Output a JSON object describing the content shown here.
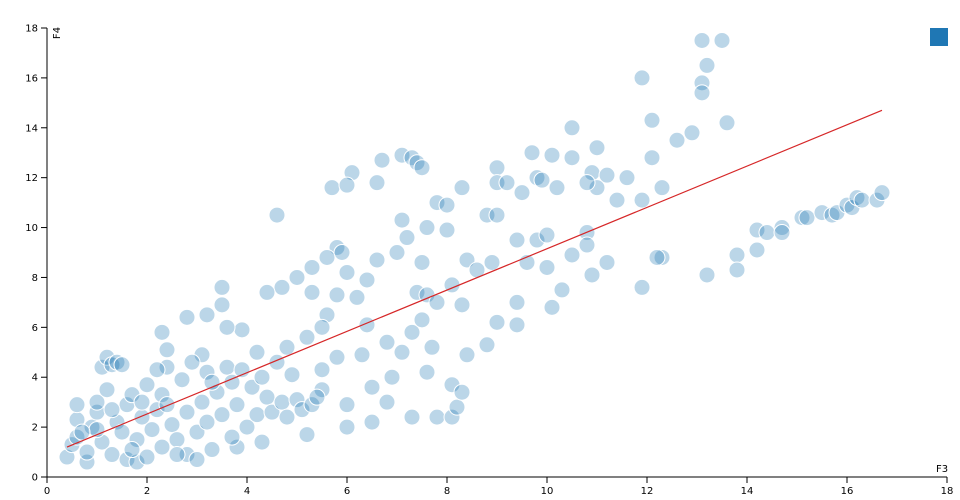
{
  "chart_data": {
    "type": "scatter",
    "x_label": "F3",
    "y_label": "F4",
    "xlim": [
      0,
      18
    ],
    "ylim": [
      0,
      18
    ],
    "xticks": [
      0,
      2,
      4,
      6,
      8,
      10,
      12,
      14,
      16,
      18
    ],
    "yticks": [
      0,
      2,
      4,
      6,
      8,
      10,
      12,
      14,
      16,
      18
    ],
    "legend": "top-right",
    "series": [
      {
        "color": "#1f77b4",
        "points": [
          [
            13.1,
            17.5
          ],
          [
            13.5,
            17.5
          ],
          [
            13.2,
            16.5
          ],
          [
            11.9,
            16.0
          ],
          [
            13.1,
            15.8
          ],
          [
            13.1,
            15.4
          ],
          [
            13.6,
            14.2
          ],
          [
            12.1,
            14.3
          ],
          [
            12.9,
            13.8
          ],
          [
            10.5,
            14.0
          ],
          [
            12.6,
            13.5
          ],
          [
            11.0,
            13.2
          ],
          [
            14.2,
            9.9
          ],
          [
            14.4,
            9.8
          ],
          [
            14.7,
            10.0
          ],
          [
            14.7,
            9.8
          ],
          [
            15.1,
            10.4
          ],
          [
            15.2,
            10.4
          ],
          [
            15.5,
            10.6
          ],
          [
            15.7,
            10.5
          ],
          [
            15.8,
            10.6
          ],
          [
            16.0,
            10.9
          ],
          [
            16.1,
            10.8
          ],
          [
            16.2,
            11.2
          ],
          [
            16.3,
            11.1
          ],
          [
            16.6,
            11.1
          ],
          [
            16.7,
            11.4
          ],
          [
            14.2,
            9.1
          ],
          [
            13.8,
            8.9
          ],
          [
            13.8,
            8.3
          ],
          [
            13.2,
            8.1
          ],
          [
            12.3,
            8.8
          ],
          [
            11.9,
            7.6
          ],
          [
            10.3,
            7.5
          ],
          [
            10.1,
            6.8
          ],
          [
            9.4,
            7.0
          ],
          [
            9.4,
            6.1
          ],
          [
            9.0,
            6.2
          ],
          [
            11.2,
            8.6
          ],
          [
            10.9,
            8.1
          ],
          [
            7.1,
            12.9
          ],
          [
            7.3,
            12.8
          ],
          [
            7.4,
            12.6
          ],
          [
            7.5,
            12.4
          ],
          [
            6.7,
            12.7
          ],
          [
            6.6,
            11.8
          ],
          [
            6.1,
            12.2
          ],
          [
            5.7,
            11.6
          ],
          [
            6.0,
            11.7
          ],
          [
            4.6,
            10.5
          ],
          [
            8.3,
            11.6
          ],
          [
            9.0,
            12.4
          ],
          [
            9.0,
            11.8
          ],
          [
            9.2,
            11.8
          ],
          [
            9.8,
            12.0
          ],
          [
            9.9,
            11.9
          ],
          [
            9.7,
            13.0
          ],
          [
            10.1,
            12.9
          ],
          [
            10.5,
            12.8
          ],
          [
            10.9,
            12.2
          ],
          [
            11.2,
            12.1
          ],
          [
            11.6,
            12.0
          ],
          [
            11.0,
            11.6
          ],
          [
            10.8,
            11.8
          ],
          [
            11.4,
            11.1
          ],
          [
            9.5,
            11.4
          ],
          [
            10.2,
            11.6
          ],
          [
            7.8,
            11.0
          ],
          [
            8.0,
            10.9
          ],
          [
            8.8,
            10.5
          ],
          [
            9.0,
            10.5
          ],
          [
            7.1,
            10.3
          ],
          [
            7.6,
            10.0
          ],
          [
            8.0,
            9.9
          ],
          [
            9.4,
            9.5
          ],
          [
            9.8,
            9.5
          ],
          [
            10.0,
            9.7
          ],
          [
            10.8,
            9.8
          ],
          [
            10.8,
            9.3
          ],
          [
            11.9,
            11.1
          ],
          [
            12.1,
            12.8
          ],
          [
            12.3,
            11.6
          ],
          [
            12.2,
            8.8
          ],
          [
            5.8,
            9.2
          ],
          [
            5.9,
            9.0
          ],
          [
            5.6,
            8.8
          ],
          [
            5.3,
            8.4
          ],
          [
            5.0,
            8.0
          ],
          [
            4.7,
            7.6
          ],
          [
            4.4,
            7.4
          ],
          [
            3.5,
            7.6
          ],
          [
            3.5,
            6.9
          ],
          [
            6.0,
            8.2
          ],
          [
            6.4,
            7.9
          ],
          [
            6.6,
            8.7
          ],
          [
            7.0,
            9.0
          ],
          [
            7.2,
            9.6
          ],
          [
            7.5,
            8.6
          ],
          [
            8.1,
            7.7
          ],
          [
            8.4,
            8.7
          ],
          [
            8.6,
            8.3
          ],
          [
            8.9,
            8.6
          ],
          [
            9.6,
            8.6
          ],
          [
            10.0,
            8.4
          ],
          [
            10.5,
            8.9
          ],
          [
            7.4,
            7.4
          ],
          [
            7.6,
            7.3
          ],
          [
            7.8,
            7.0
          ],
          [
            8.3,
            6.9
          ],
          [
            6.2,
            7.2
          ],
          [
            5.8,
            7.3
          ],
          [
            5.3,
            7.4
          ],
          [
            5.6,
            6.5
          ],
          [
            5.5,
            6.0
          ],
          [
            5.2,
            5.6
          ],
          [
            4.8,
            5.2
          ],
          [
            4.2,
            5.0
          ],
          [
            3.9,
            5.9
          ],
          [
            3.6,
            6.0
          ],
          [
            3.2,
            6.5
          ],
          [
            2.8,
            6.4
          ],
          [
            2.3,
            5.8
          ],
          [
            2.4,
            5.1
          ],
          [
            3.1,
            4.9
          ],
          [
            6.4,
            6.1
          ],
          [
            6.8,
            5.4
          ],
          [
            7.1,
            5.0
          ],
          [
            7.3,
            5.8
          ],
          [
            7.5,
            6.3
          ],
          [
            7.7,
            5.2
          ],
          [
            8.4,
            4.9
          ],
          [
            8.8,
            5.3
          ],
          [
            7.6,
            4.2
          ],
          [
            6.9,
            4.0
          ],
          [
            6.5,
            3.6
          ],
          [
            6.3,
            4.9
          ],
          [
            5.8,
            4.8
          ],
          [
            5.5,
            4.3
          ],
          [
            7.3,
            2.4
          ],
          [
            7.8,
            2.4
          ],
          [
            8.1,
            2.4
          ],
          [
            8.2,
            2.8
          ],
          [
            8.1,
            3.7
          ],
          [
            8.3,
            3.4
          ],
          [
            6.8,
            3.0
          ],
          [
            6.5,
            2.2
          ],
          [
            6.0,
            2.0
          ],
          [
            5.2,
            1.7
          ],
          [
            4.3,
            1.4
          ],
          [
            3.8,
            1.2
          ],
          [
            6.0,
            2.9
          ],
          [
            5.5,
            3.5
          ],
          [
            0.4,
            0.8
          ],
          [
            0.5,
            1.3
          ],
          [
            0.6,
            1.6
          ],
          [
            0.6,
            2.3
          ],
          [
            0.6,
            2.9
          ],
          [
            0.8,
            0.6
          ],
          [
            0.8,
            1.0
          ],
          [
            0.9,
            2.0
          ],
          [
            1.0,
            2.6
          ],
          [
            1.0,
            3.0
          ],
          [
            1.1,
            1.4
          ],
          [
            1.1,
            4.4
          ],
          [
            1.2,
            4.8
          ],
          [
            1.3,
            4.5
          ],
          [
            1.4,
            4.6
          ],
          [
            1.5,
            4.5
          ],
          [
            1.2,
            3.5
          ],
          [
            1.3,
            0.9
          ],
          [
            1.4,
            2.2
          ],
          [
            1.5,
            1.8
          ],
          [
            1.6,
            0.7
          ],
          [
            1.6,
            2.9
          ],
          [
            1.7,
            3.3
          ],
          [
            1.8,
            0.6
          ],
          [
            1.8,
            1.5
          ],
          [
            1.9,
            2.4
          ],
          [
            2.0,
            3.7
          ],
          [
            2.0,
            0.8
          ],
          [
            2.1,
            1.9
          ],
          [
            2.2,
            2.7
          ],
          [
            2.3,
            1.2
          ],
          [
            2.3,
            3.3
          ],
          [
            2.4,
            4.4
          ],
          [
            2.5,
            2.1
          ],
          [
            2.6,
            1.5
          ],
          [
            2.7,
            3.9
          ],
          [
            2.8,
            2.6
          ],
          [
            2.8,
            0.9
          ],
          [
            2.9,
            4.6
          ],
          [
            3.0,
            1.8
          ],
          [
            3.1,
            3.0
          ],
          [
            3.2,
            2.2
          ],
          [
            3.2,
            4.2
          ],
          [
            3.3,
            1.1
          ],
          [
            3.4,
            3.4
          ],
          [
            3.5,
            2.5
          ],
          [
            3.6,
            4.4
          ],
          [
            3.7,
            1.6
          ],
          [
            3.7,
            3.8
          ],
          [
            3.8,
            2.9
          ],
          [
            3.9,
            4.3
          ],
          [
            4.0,
            2.0
          ],
          [
            4.1,
            3.6
          ],
          [
            4.2,
            2.5
          ],
          [
            4.3,
            4.0
          ],
          [
            4.4,
            3.2
          ],
          [
            4.5,
            2.6
          ],
          [
            4.6,
            4.6
          ],
          [
            4.7,
            3.0
          ],
          [
            4.8,
            2.4
          ],
          [
            5.0,
            3.1
          ],
          [
            5.1,
            2.7
          ],
          [
            5.3,
            2.9
          ],
          [
            5.4,
            3.2
          ],
          [
            4.9,
            4.1
          ],
          [
            1.0,
            1.9
          ],
          [
            1.7,
            1.1
          ],
          [
            2.6,
            0.9
          ],
          [
            3.0,
            0.7
          ],
          [
            1.9,
            3.0
          ],
          [
            2.2,
            4.3
          ],
          [
            0.7,
            1.8
          ],
          [
            1.3,
            2.7
          ],
          [
            2.4,
            2.9
          ],
          [
            3.3,
            3.8
          ]
        ]
      }
    ],
    "trend_line": {
      "color": "#d62728",
      "x": [
        0.4,
        16.7
      ],
      "y": [
        1.2,
        14.7
      ]
    }
  }
}
